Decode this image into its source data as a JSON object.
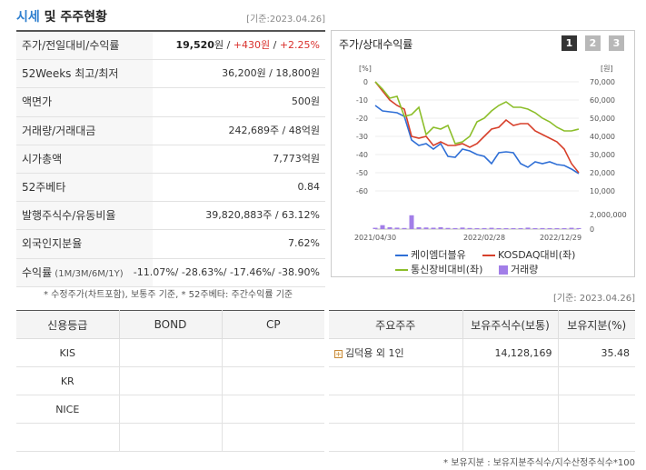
{
  "header": {
    "title_part1": "시세",
    "title_part2": " 및 주주현황",
    "date": "[기준:2023.04.26]"
  },
  "info": [
    {
      "label": "주가/전일대비/수익률",
      "value_main": "19,520",
      "value_unit": "원",
      "value_sep1": " / ",
      "value_change": "+430원",
      "value_sep2": " / ",
      "value_rate": "+2.25%"
    },
    {
      "label": "52Weeks 최고/최저",
      "value": "36,200원 / 18,800원"
    },
    {
      "label": "액면가",
      "value": "500원"
    },
    {
      "label": "거래량/거래대금",
      "value": "242,689주 / 48억원"
    },
    {
      "label": "시가총액",
      "value": "7,773억원"
    },
    {
      "label": "52주베타",
      "value": "0.84"
    },
    {
      "label": "발행주식수/유동비율",
      "value": "39,820,883주 / 63.12%"
    },
    {
      "label": "외국인지분율",
      "value": "7.62%"
    },
    {
      "label": "수익률",
      "label_sub": " (1M/3M/6M/1Y)",
      "value": "-11.07%/ -28.63%/ -17.46%/ -38.90%"
    }
  ],
  "info_note": "* 수정주가(차트포함), 보통주 기준, * 52주베타: 주간수익률 기준",
  "chart_panel": {
    "title": "주가/상대수익률",
    "pages": [
      "1",
      "2",
      "3"
    ]
  },
  "chart_data": {
    "type": "line",
    "left_axis_unit": "[%]",
    "right_axis_unit": "[원]",
    "left_ticks": [
      "0",
      "-10",
      "-20",
      "-30",
      "-40",
      "-50",
      "-60"
    ],
    "right_ticks": [
      "70,000",
      "60,000",
      "50,000",
      "40,000",
      "30,000",
      "20,000",
      "10,000"
    ],
    "volume_ticks": [
      "2,000,000",
      "0"
    ],
    "x_ticks": [
      "2021/04/30",
      "2022/02/28",
      "2022/12/29"
    ],
    "ylim_left": [
      -60,
      0
    ],
    "ylim_right": [
      10000,
      70000
    ],
    "series": [
      {
        "name": "케이엠더블유",
        "color": "#2f6fd6",
        "axis": "right",
        "values": [
          57000,
          54000,
          53500,
          53000,
          51000,
          38000,
          35000,
          36000,
          33000,
          36000,
          29000,
          28500,
          33000,
          32000,
          30000,
          29000,
          25000,
          31000,
          31500,
          31000,
          25000,
          23000,
          26000,
          25000,
          26000,
          24500,
          24000,
          22000,
          19500
        ]
      },
      {
        "name": "KOSDAQ대비(좌)",
        "color": "#d7402b",
        "axis": "left",
        "values": [
          0,
          -5,
          -10,
          -13,
          -15,
          -30,
          -31,
          -30,
          -35,
          -33,
          -35,
          -35,
          -34,
          -36,
          -34,
          -30,
          -26,
          -25,
          -21,
          -24,
          -23,
          -23,
          -27,
          -29,
          -31,
          -33,
          -37,
          -45,
          -50
        ]
      },
      {
        "name": "통신장비대비(좌)",
        "color": "#8cbe2a",
        "axis": "left",
        "values": [
          0,
          -4,
          -9,
          -8,
          -19,
          -18,
          -14,
          -29,
          -25,
          -26,
          -24,
          -34,
          -33,
          -30,
          -22,
          -20,
          -16,
          -13,
          -11,
          -14,
          -14,
          -15,
          -17,
          -20,
          -22,
          -25,
          -27,
          -27,
          -26
        ]
      },
      {
        "name": "거래량",
        "color": "#a27ee8",
        "axis": "volume",
        "values": [
          180000,
          540000,
          260000,
          200000,
          150000,
          1900000,
          260000,
          220000,
          190000,
          260000,
          160000,
          140000,
          210000,
          150000,
          120000,
          140000,
          180000,
          110000,
          120000,
          100000,
          130000,
          200000,
          130000,
          140000,
          110000,
          100000,
          120000,
          180000,
          140000
        ]
      }
    ]
  },
  "date_right": "[기준: 2023.04.26]",
  "credit": {
    "headers": [
      "신용등급",
      "BOND",
      "CP"
    ],
    "rows": [
      [
        "KIS",
        "",
        ""
      ],
      [
        "KR",
        "",
        ""
      ],
      [
        "NICE",
        "",
        ""
      ],
      [
        "",
        "",
        ""
      ]
    ]
  },
  "holders": {
    "headers": [
      "주요주주",
      "보유주식수(보통)",
      "보유지분(%)"
    ],
    "rows": [
      {
        "name": "김덕용 외 1인",
        "shares": "14,128,169",
        "pct": "35.48"
      },
      {
        "name": "",
        "shares": "",
        "pct": ""
      },
      {
        "name": "",
        "shares": "",
        "pct": ""
      },
      {
        "name": "",
        "shares": "",
        "pct": ""
      }
    ]
  },
  "holders_note": "* 보유지분 : 보유지분주식수/지수산정주식수*100"
}
